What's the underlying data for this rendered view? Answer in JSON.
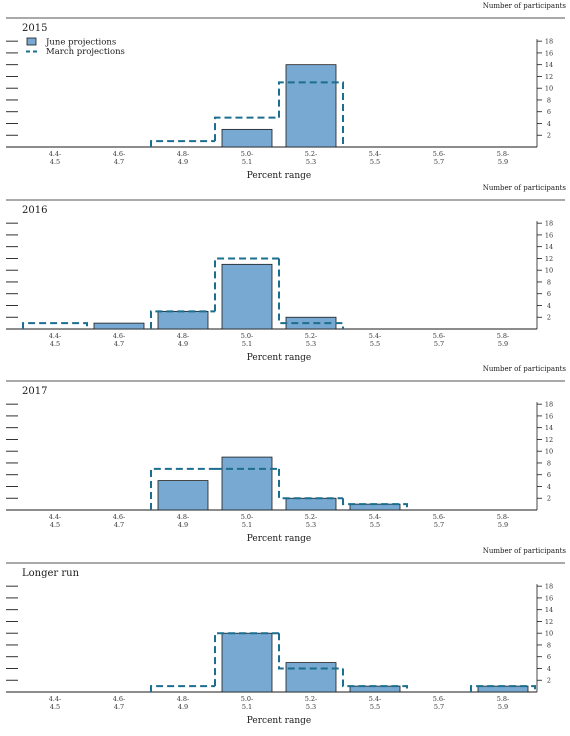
{
  "colors": {
    "june_fill": "#77a9d2",
    "june_stroke": "#1a1a1a",
    "march_stroke": "#1b6e8f",
    "axis": "#1a1a1a"
  },
  "legend": {
    "june_label": "June projections",
    "march_label": "March projections"
  },
  "chart_data": [
    {
      "type": "bar",
      "title": "2015",
      "ylabel": "Number of participants",
      "xlabel": "Percent range",
      "categories": [
        "4.4-4.5",
        "4.6-4.7",
        "4.8-4.9",
        "5.0-5.1",
        "5.2-5.3",
        "5.4-5.5",
        "5.6-5.7",
        "5.8-5.9"
      ],
      "tick_top": [
        "4.4-",
        "4.6-",
        "4.8-",
        "5.0-",
        "5.2-",
        "5.4-",
        "5.6-",
        "5.8-"
      ],
      "tick_bottom": [
        "4.5",
        "4.7",
        "4.9",
        "5.1",
        "5.3",
        "5.5",
        "5.7",
        "5.9"
      ],
      "ylim": [
        0,
        18
      ],
      "yticks": [
        2,
        4,
        6,
        8,
        10,
        12,
        14,
        16,
        18
      ],
      "series": [
        {
          "name": "June projections",
          "values": [
            0,
            0,
            0,
            3,
            14,
            0,
            0,
            0
          ]
        },
        {
          "name": "March projections",
          "values": [
            0,
            0,
            1,
            5,
            11,
            0,
            0,
            0
          ]
        }
      ]
    },
    {
      "type": "bar",
      "title": "2016",
      "ylabel": "Number of participants",
      "xlabel": "Percent range",
      "categories": [
        "4.4-4.5",
        "4.6-4.7",
        "4.8-4.9",
        "5.0-5.1",
        "5.2-5.3",
        "5.4-5.5",
        "5.6-5.7",
        "5.8-5.9"
      ],
      "tick_top": [
        "4.4-",
        "4.6-",
        "4.8-",
        "5.0-",
        "5.2-",
        "5.4-",
        "5.6-",
        "5.8-"
      ],
      "tick_bottom": [
        "4.5",
        "4.7",
        "4.9",
        "5.1",
        "5.3",
        "5.5",
        "5.7",
        "5.9"
      ],
      "ylim": [
        0,
        18
      ],
      "yticks": [
        2,
        4,
        6,
        8,
        10,
        12,
        14,
        16,
        18
      ],
      "series": [
        {
          "name": "June projections",
          "values": [
            0,
            1,
            3,
            11,
            2,
            0,
            0,
            0
          ]
        },
        {
          "name": "March projections",
          "values": [
            1,
            0,
            3,
            12,
            1,
            0,
            0,
            0
          ]
        }
      ]
    },
    {
      "type": "bar",
      "title": "2017",
      "ylabel": "Number of participants",
      "xlabel": "Percent range",
      "categories": [
        "4.4-4.5",
        "4.6-4.7",
        "4.8-4.9",
        "5.0-5.1",
        "5.2-5.3",
        "5.4-5.5",
        "5.6-5.7",
        "5.8-5.9"
      ],
      "tick_top": [
        "4.4-",
        "4.6-",
        "4.8-",
        "5.0-",
        "5.2-",
        "5.4-",
        "5.6-",
        "5.8-"
      ],
      "tick_bottom": [
        "4.5",
        "4.7",
        "4.9",
        "5.1",
        "5.3",
        "5.5",
        "5.7",
        "5.9"
      ],
      "ylim": [
        0,
        18
      ],
      "yticks": [
        2,
        4,
        6,
        8,
        10,
        12,
        14,
        16,
        18
      ],
      "series": [
        {
          "name": "June projections",
          "values": [
            0,
            0,
            5,
            9,
            2,
            1,
            0,
            0
          ]
        },
        {
          "name": "March projections",
          "values": [
            0,
            0,
            7,
            7,
            2,
            1,
            0,
            0
          ]
        }
      ]
    },
    {
      "type": "bar",
      "title": "Longer run",
      "ylabel": "Number of participants",
      "xlabel": "Percent range",
      "categories": [
        "4.4-4.5",
        "4.6-4.7",
        "4.8-4.9",
        "5.0-5.1",
        "5.2-5.3",
        "5.4-5.5",
        "5.6-5.7",
        "5.8-5.9"
      ],
      "tick_top": [
        "4.4-",
        "4.6-",
        "4.8-",
        "5.0-",
        "5.2-",
        "5.4-",
        "5.6-",
        "5.8-"
      ],
      "tick_bottom": [
        "4.5",
        "4.7",
        "4.9",
        "5.1",
        "5.3",
        "5.5",
        "5.7",
        "5.9"
      ],
      "ylim": [
        0,
        18
      ],
      "yticks": [
        2,
        4,
        6,
        8,
        10,
        12,
        14,
        16,
        18
      ],
      "series": [
        {
          "name": "June projections",
          "values": [
            0,
            0,
            0,
            10,
            5,
            1,
            0,
            1
          ]
        },
        {
          "name": "March projections",
          "values": [
            0,
            0,
            1,
            10,
            4,
            1,
            0,
            1
          ]
        }
      ]
    }
  ]
}
